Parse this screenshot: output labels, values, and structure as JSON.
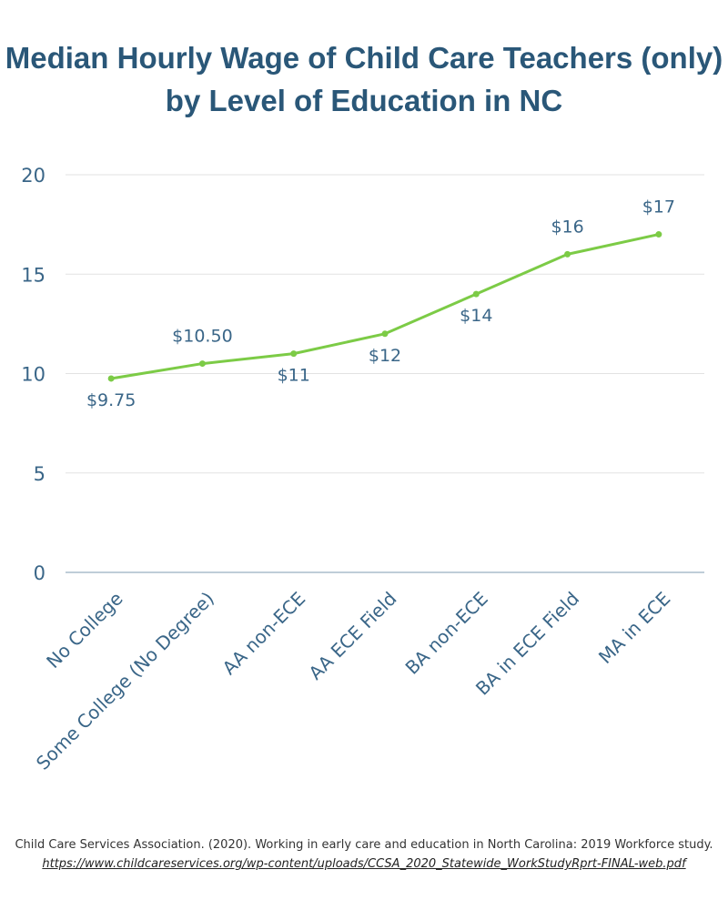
{
  "chart_data": {
    "type": "line",
    "title": "Median Hourly Wage of Child Care Teachers (only) by Level of Education in NC",
    "categories": [
      "No College",
      "Some College (No Degree)",
      "AA non-ECE",
      "AA ECE Field",
      "BA non-ECE",
      "BA in ECE Field",
      "MA in ECE"
    ],
    "series": [
      {
        "color": "#7ccb46",
        "values": [
          9.75,
          10.5,
          11,
          12,
          14,
          16,
          17
        ],
        "value_labels": [
          "$9.75",
          "$10.50",
          "$11",
          "$12",
          "$14",
          "$16",
          "$17"
        ]
      }
    ],
    "ylim": [
      0,
      20
    ],
    "yticks": [
      0,
      5,
      10,
      15,
      20
    ],
    "grid": true,
    "source": {
      "text": "Child Care Services Association. (2020). Working in early care and education in North Carolina: 2019 Workforce study.",
      "url": "https://www.childcareservices.org/wp-content/uploads/CCSA_2020_Statewide_WorkStudyRprt-FINAL-web.pdf"
    }
  }
}
